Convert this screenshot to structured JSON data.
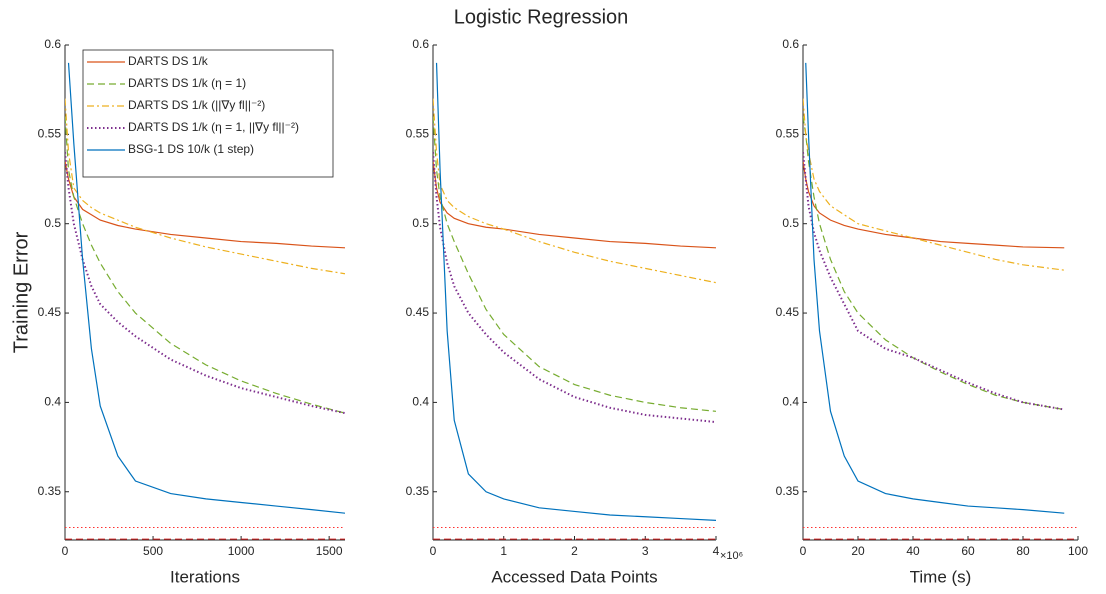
{
  "title": "Logistic Regression",
  "chart_data": [
    {
      "type": "line",
      "xlabel": "Iterations",
      "ylabel": "Training Error",
      "xlim": [
        0,
        1590
      ],
      "ylim": [
        0.323,
        0.6
      ],
      "xticks": [
        0,
        500,
        1000,
        1500
      ],
      "yticks": [
        0.35,
        0.4,
        0.45,
        0.5,
        0.55,
        0.6
      ],
      "legend": "upper-left",
      "x": [
        0,
        20,
        50,
        100,
        150,
        200,
        300,
        400,
        600,
        800,
        1000,
        1200,
        1400,
        1590
      ],
      "series": [
        {
          "name": "DARTS DS 1/k",
          "color": "#d95319",
          "style": "solid",
          "values": [
            0.535,
            0.525,
            0.515,
            0.508,
            0.505,
            0.502,
            0.499,
            0.497,
            0.494,
            0.492,
            0.49,
            0.489,
            0.4875,
            0.4865
          ]
        },
        {
          "name": "DARTS DS 1/k (η = 1)",
          "color": "#77ac30",
          "style": "dashed",
          "values": [
            0.56,
            0.53,
            0.515,
            0.5,
            0.488,
            0.478,
            0.462,
            0.45,
            0.433,
            0.421,
            0.412,
            0.405,
            0.399,
            0.394
          ]
        },
        {
          "name": "DARTS DS 1/k (||∇y fl||⁻²)",
          "color": "#edb120",
          "style": "dashdot",
          "values": [
            0.57,
            0.54,
            0.52,
            0.513,
            0.509,
            0.506,
            0.502,
            0.498,
            0.492,
            0.487,
            0.483,
            0.479,
            0.475,
            0.472
          ]
        },
        {
          "name": "DARTS DS 1/k (η = 1, ||∇y fl||⁻²)",
          "color": "#7e2f8e",
          "style": "dotted",
          "values": [
            0.54,
            0.52,
            0.5,
            0.48,
            0.465,
            0.455,
            0.445,
            0.437,
            0.424,
            0.415,
            0.408,
            0.403,
            0.398,
            0.394
          ]
        },
        {
          "name": "BSG-1 DS 10/k (1 step)",
          "color": "#0072bd",
          "style": "solid",
          "values": [
            null,
            0.59,
            0.545,
            0.48,
            0.43,
            0.398,
            0.37,
            0.356,
            0.349,
            0.346,
            0.344,
            0.342,
            0.34,
            0.338
          ]
        }
      ],
      "hlines": [
        {
          "value": 0.33,
          "color": "#ff3030",
          "style": "dotted"
        },
        {
          "value": 0.3235,
          "color": "#d62020",
          "style": "dashed"
        }
      ]
    },
    {
      "type": "line",
      "xlabel": "Accessed Data Points",
      "x_multiplier": "×10⁶",
      "xlim": [
        0,
        4
      ],
      "ylim": [
        0.323,
        0.6
      ],
      "xticks": [
        0,
        1,
        2,
        3,
        4
      ],
      "yticks": [
        0.35,
        0.4,
        0.45,
        0.5,
        0.55,
        0.6
      ],
      "x": [
        0,
        0.05,
        0.1,
        0.2,
        0.3,
        0.5,
        0.75,
        1,
        1.5,
        2,
        2.5,
        3,
        3.5,
        4
      ],
      "series": [
        {
          "color": "#d95319",
          "style": "solid",
          "values": [
            0.535,
            0.52,
            0.512,
            0.506,
            0.503,
            0.5,
            0.498,
            0.497,
            0.494,
            0.492,
            0.49,
            0.489,
            0.4875,
            0.4865
          ]
        },
        {
          "color": "#77ac30",
          "style": "dashed",
          "values": [
            0.56,
            0.53,
            0.515,
            0.5,
            0.49,
            0.472,
            0.452,
            0.438,
            0.42,
            0.41,
            0.404,
            0.4,
            0.397,
            0.395
          ]
        },
        {
          "color": "#edb120",
          "style": "dashdot",
          "values": [
            0.57,
            0.54,
            0.522,
            0.513,
            0.509,
            0.504,
            0.5,
            0.497,
            0.49,
            0.484,
            0.479,
            0.475,
            0.471,
            0.467
          ]
        },
        {
          "color": "#7e2f8e",
          "style": "dotted",
          "values": [
            0.54,
            0.515,
            0.498,
            0.478,
            0.465,
            0.45,
            0.438,
            0.428,
            0.413,
            0.403,
            0.397,
            0.393,
            0.391,
            0.389
          ]
        },
        {
          "color": "#0072bd",
          "style": "solid",
          "values": [
            null,
            0.59,
            0.53,
            0.44,
            0.39,
            0.36,
            0.35,
            0.346,
            0.341,
            0.339,
            0.337,
            0.336,
            0.335,
            0.334
          ]
        }
      ],
      "hlines": [
        {
          "value": 0.33,
          "color": "#ff3030",
          "style": "dotted"
        },
        {
          "value": 0.3235,
          "color": "#d62020",
          "style": "dashed"
        }
      ]
    },
    {
      "type": "line",
      "xlabel": "Time (s)",
      "xlim": [
        0,
        100
      ],
      "ylim": [
        0.323,
        0.6
      ],
      "xticks": [
        0,
        20,
        40,
        60,
        80,
        100
      ],
      "yticks": [
        0.35,
        0.4,
        0.45,
        0.5,
        0.55,
        0.6
      ],
      "x": [
        0,
        1,
        2,
        4,
        6,
        10,
        15,
        20,
        30,
        40,
        50,
        60,
        70,
        80,
        95
      ],
      "series": [
        {
          "color": "#d95319",
          "style": "solid",
          "values": [
            0.535,
            0.525,
            0.518,
            0.51,
            0.506,
            0.502,
            0.499,
            0.497,
            0.494,
            0.492,
            0.49,
            0.489,
            0.488,
            0.487,
            0.4865
          ]
        },
        {
          "color": "#77ac30",
          "style": "dashed",
          "values": [
            0.56,
            0.55,
            0.535,
            0.515,
            0.5,
            0.48,
            0.462,
            0.45,
            0.435,
            0.425,
            0.417,
            0.41,
            0.404,
            0.4,
            0.396
          ]
        },
        {
          "color": "#edb120",
          "style": "dashdot",
          "values": [
            0.57,
            0.55,
            0.54,
            0.525,
            0.518,
            0.51,
            0.505,
            0.5,
            0.496,
            0.492,
            0.488,
            0.484,
            0.48,
            0.477,
            0.474
          ]
        },
        {
          "color": "#7e2f8e",
          "style": "dotted",
          "values": [
            0.54,
            0.525,
            0.51,
            0.495,
            0.485,
            0.47,
            0.455,
            0.44,
            0.43,
            0.425,
            0.418,
            0.411,
            0.405,
            0.4,
            0.396
          ]
        },
        {
          "color": "#0072bd",
          "style": "solid",
          "values": [
            null,
            0.59,
            0.55,
            0.48,
            0.44,
            0.395,
            0.37,
            0.356,
            0.349,
            0.346,
            0.344,
            0.342,
            0.341,
            0.34,
            0.338
          ]
        }
      ],
      "hlines": [
        {
          "value": 0.33,
          "color": "#ff3030",
          "style": "dotted"
        },
        {
          "value": 0.3235,
          "color": "#d62020",
          "style": "dashed"
        }
      ]
    }
  ]
}
